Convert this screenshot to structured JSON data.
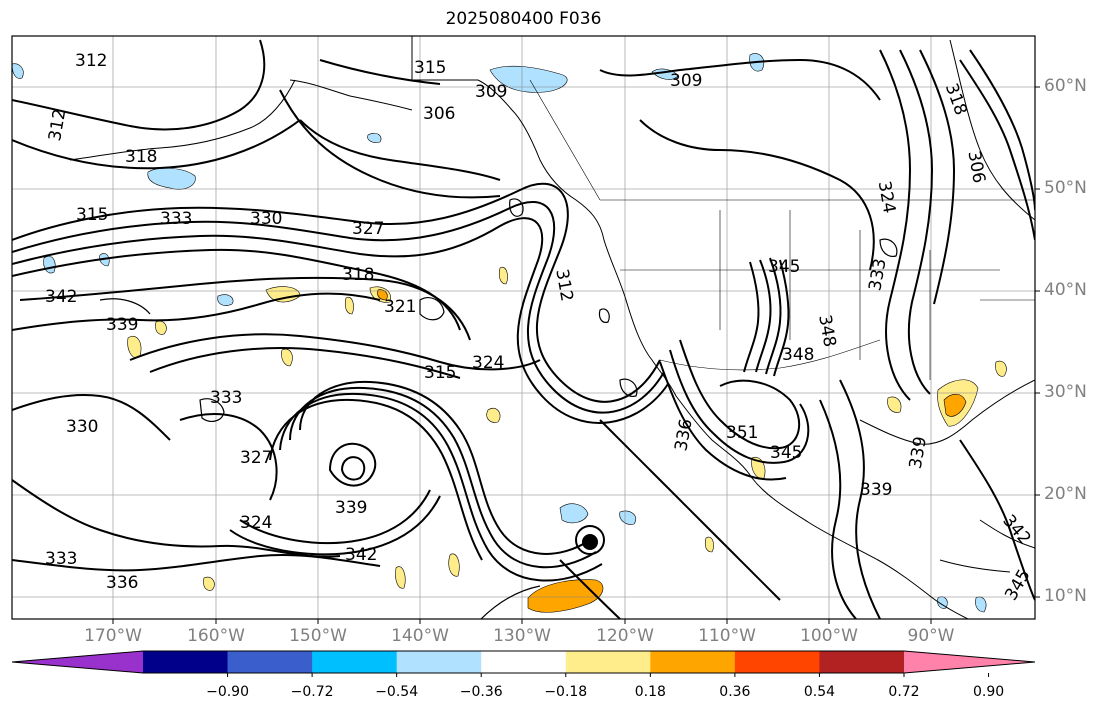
{
  "title": "2025080400 F036",
  "lat_labels": [
    "60°N",
    "50°N",
    "40°N",
    "30°N",
    "20°N",
    "10°N"
  ],
  "lon_labels": [
    "170°W",
    "160°W",
    "150°W",
    "140°W",
    "130°W",
    "120°W",
    "110°W",
    "100°W",
    "90°W"
  ],
  "colorbar": {
    "labels": [
      "−0.90",
      "−0.72",
      "−0.54",
      "−0.36",
      "−0.18",
      "0.18",
      "0.36",
      "0.54",
      "0.72",
      "0.90"
    ],
    "colors": [
      "#9932cc",
      "#00008b",
      "#3a5fcd",
      "#00bfff",
      "#b0e2ff",
      "#ffffff",
      "#ffec8b",
      "#ffa500",
      "#ff4500",
      "#b22222",
      "#ff82ab"
    ]
  },
  "contour_labels": [
    "312",
    "315",
    "309",
    "306",
    "309",
    "312",
    "318",
    "315",
    "333",
    "330",
    "327",
    "342",
    "339",
    "318",
    "321",
    "312",
    "324",
    "315",
    "333",
    "330",
    "327",
    "324",
    "339",
    "342",
    "333",
    "336",
    "345",
    "348",
    "351",
    "345",
    "339",
    "339",
    "342",
    "345",
    "333",
    "306",
    "324",
    "318",
    "336",
    "348"
  ],
  "colors": {
    "land_line": "#000000",
    "grid": "#808080",
    "shade_neg": "#b0e2ff",
    "shade_pos": "#ffec8b",
    "shade_pos_strong": "#ffa500"
  }
}
